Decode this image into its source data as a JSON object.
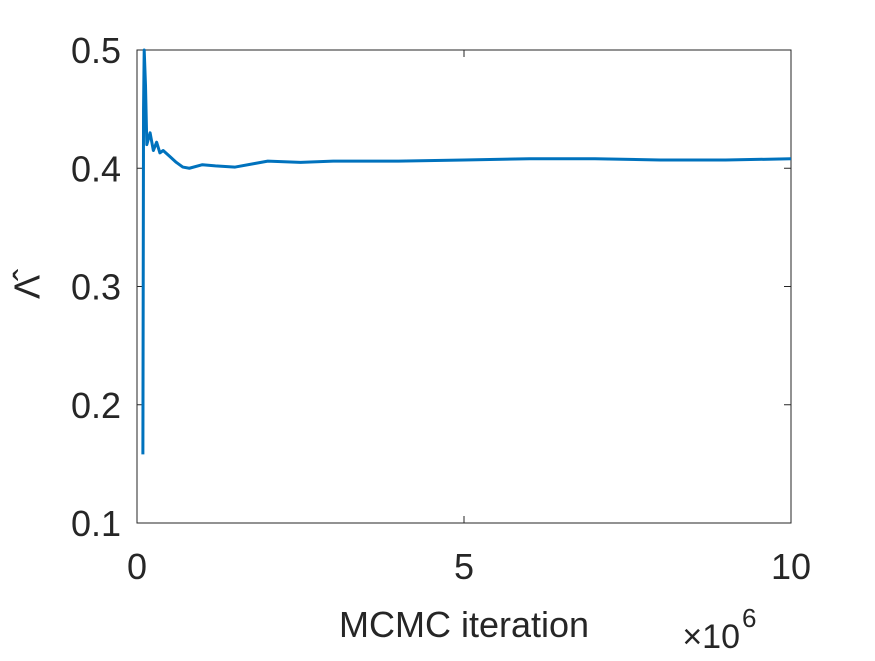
{
  "chart_data": {
    "type": "line",
    "xlabel": "MCMC iteration",
    "ylabel": "Λ̂",
    "x_multiplier": {
      "base": "×10",
      "exponent": "6"
    },
    "x": [
      0.09,
      0.1,
      0.11,
      0.13,
      0.15,
      0.2,
      0.25,
      0.3,
      0.35,
      0.4,
      0.5,
      0.6,
      0.7,
      0.8,
      1.0,
      1.2,
      1.5,
      1.8,
      2.0,
      2.5,
      3,
      4,
      5,
      6,
      7,
      8,
      9,
      10
    ],
    "series": [
      {
        "color": "#0072bd",
        "values": [
          0.158,
          0.45,
          0.5,
          0.47,
          0.42,
          0.43,
          0.415,
          0.422,
          0.413,
          0.415,
          0.41,
          0.405,
          0.401,
          0.4,
          0.403,
          0.402,
          0.401,
          0.404,
          0.406,
          0.405,
          0.406,
          0.406,
          0.407,
          0.408,
          0.408,
          0.407,
          0.407,
          0.408
        ]
      }
    ],
    "xlim": [
      0,
      10
    ],
    "xticks": [
      0,
      5,
      10
    ],
    "ylim": [
      0.1,
      0.5
    ],
    "yticks": [
      0.1,
      0.2,
      0.3,
      0.4,
      0.5
    ],
    "grid": false
  }
}
